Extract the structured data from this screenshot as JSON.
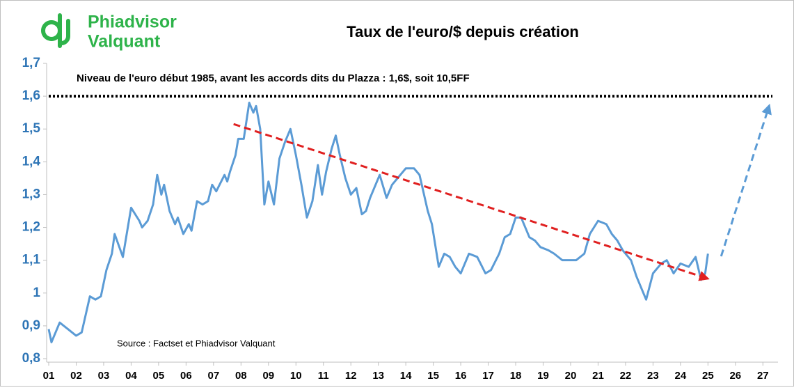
{
  "brand": {
    "line1": "Phiadvisor",
    "line2": "Valquant"
  },
  "chart_data": {
    "type": "line",
    "title": "Taux de l'euro/$ depuis création",
    "annotation": "Niveau de l'euro début 1985, avant les accords dits du Plazza : 1,6$, soit 10,5FF",
    "source": "Source : Factset et Phiadvisor Valquant",
    "color": "#5b9bd5",
    "x": [
      2001.0,
      2001.1,
      2001.4,
      2001.7,
      2002.0,
      2002.2,
      2002.5,
      2002.7,
      2002.9,
      2003.1,
      2003.3,
      2003.4,
      2003.7,
      2003.8,
      2004.0,
      2004.3,
      2004.4,
      2004.6,
      2004.8,
      2004.95,
      2005.1,
      2005.2,
      2005.4,
      2005.6,
      2005.7,
      2005.9,
      2006.1,
      2006.2,
      2006.4,
      2006.6,
      2006.8,
      2006.95,
      2007.1,
      2007.4,
      2007.5,
      2007.6,
      2007.8,
      2007.9,
      2008.1,
      2008.3,
      2008.45,
      2008.55,
      2008.7,
      2008.85,
      2009.0,
      2009.2,
      2009.4,
      2009.6,
      2009.8,
      2010.0,
      2010.2,
      2010.4,
      2010.6,
      2010.8,
      2010.95,
      2011.1,
      2011.3,
      2011.45,
      2011.6,
      2011.8,
      2012.0,
      2012.2,
      2012.4,
      2012.55,
      2012.7,
      2012.9,
      2013.05,
      2013.3,
      2013.5,
      2013.8,
      2014.0,
      2014.3,
      2014.5,
      2014.8,
      2014.95,
      2015.2,
      2015.4,
      2015.6,
      2015.8,
      2016.0,
      2016.3,
      2016.6,
      2016.9,
      2017.1,
      2017.4,
      2017.6,
      2017.8,
      2018.0,
      2018.2,
      2018.5,
      2018.7,
      2018.9,
      2019.2,
      2019.4,
      2019.7,
      2019.9,
      2020.2,
      2020.5,
      2020.7,
      2021.0,
      2021.3,
      2021.5,
      2021.7,
      2021.9,
      2022.2,
      2022.4,
      2022.65,
      2022.75,
      2023.0,
      2023.3,
      2023.5,
      2023.75,
      2024.0,
      2024.3,
      2024.55,
      2024.75,
      2024.9,
      2025.0
    ],
    "values": [
      0.89,
      0.85,
      0.91,
      0.89,
      0.87,
      0.88,
      0.99,
      0.98,
      0.99,
      1.07,
      1.12,
      1.18,
      1.11,
      1.16,
      1.26,
      1.22,
      1.2,
      1.22,
      1.27,
      1.36,
      1.3,
      1.33,
      1.25,
      1.21,
      1.23,
      1.18,
      1.21,
      1.19,
      1.28,
      1.27,
      1.28,
      1.33,
      1.31,
      1.36,
      1.34,
      1.37,
      1.42,
      1.47,
      1.47,
      1.58,
      1.55,
      1.57,
      1.5,
      1.27,
      1.34,
      1.27,
      1.41,
      1.46,
      1.5,
      1.42,
      1.33,
      1.23,
      1.28,
      1.39,
      1.3,
      1.37,
      1.44,
      1.48,
      1.42,
      1.35,
      1.3,
      1.32,
      1.24,
      1.25,
      1.29,
      1.33,
      1.36,
      1.29,
      1.33,
      1.36,
      1.38,
      1.38,
      1.36,
      1.25,
      1.21,
      1.08,
      1.12,
      1.11,
      1.08,
      1.06,
      1.12,
      1.11,
      1.06,
      1.07,
      1.12,
      1.17,
      1.18,
      1.23,
      1.23,
      1.17,
      1.16,
      1.14,
      1.13,
      1.12,
      1.1,
      1.1,
      1.1,
      1.12,
      1.18,
      1.22,
      1.21,
      1.18,
      1.16,
      1.13,
      1.1,
      1.05,
      1.0,
      0.98,
      1.06,
      1.09,
      1.1,
      1.06,
      1.09,
      1.08,
      1.11,
      1.04,
      1.06,
      1.12
    ],
    "trend_line": {
      "color": "#e02020",
      "x": [
        2007.73,
        2024.99
      ],
      "y": [
        1.515,
        1.044
      ]
    },
    "projection_line": {
      "color": "#5b9bd5",
      "x": [
        2025.48,
        2027.23
      ],
      "y": [
        1.112,
        1.571
      ]
    },
    "reference_line": {
      "color": "#000000",
      "y": 1.6
    },
    "xlim": [
      2001,
      2027.55
    ],
    "ylim": [
      0.8,
      1.7
    ],
    "xticks": [
      {
        "value": 2001,
        "label": "01"
      },
      {
        "value": 2002,
        "label": "02"
      },
      {
        "value": 2003,
        "label": "03"
      },
      {
        "value": 2004,
        "label": "04"
      },
      {
        "value": 2005,
        "label": "05"
      },
      {
        "value": 2006,
        "label": "06"
      },
      {
        "value": 2007,
        "label": "07"
      },
      {
        "value": 2008,
        "label": "08"
      },
      {
        "value": 2009,
        "label": "09"
      },
      {
        "value": 2010,
        "label": "10"
      },
      {
        "value": 2011,
        "label": "11"
      },
      {
        "value": 2012,
        "label": "12"
      },
      {
        "value": 2013,
        "label": "13"
      },
      {
        "value": 2014,
        "label": "14"
      },
      {
        "value": 2015,
        "label": "15"
      },
      {
        "value": 2016,
        "label": "16"
      },
      {
        "value": 2017,
        "label": "17"
      },
      {
        "value": 2018,
        "label": "18"
      },
      {
        "value": 2019,
        "label": "19"
      },
      {
        "value": 2020,
        "label": "20"
      },
      {
        "value": 2021,
        "label": "21"
      },
      {
        "value": 2022,
        "label": "22"
      },
      {
        "value": 2023,
        "label": "23"
      },
      {
        "value": 2024,
        "label": "24"
      },
      {
        "value": 2025,
        "label": "25"
      },
      {
        "value": 2026,
        "label": "26"
      },
      {
        "value": 2027,
        "label": "27"
      }
    ],
    "yticks": [
      {
        "value": 1.7,
        "label": "1,7"
      },
      {
        "value": 1.6,
        "label": "1,6"
      },
      {
        "value": 1.5,
        "label": "1,5"
      },
      {
        "value": 1.4,
        "label": "1,4"
      },
      {
        "value": 1.3,
        "label": "1,3"
      },
      {
        "value": 1.2,
        "label": "1,2"
      },
      {
        "value": 1.1,
        "label": "1,1"
      },
      1,
      {
        "value": 0.9,
        "label": "0,9"
      },
      {
        "value": 0.8,
        "label": "0,8"
      }
    ]
  }
}
